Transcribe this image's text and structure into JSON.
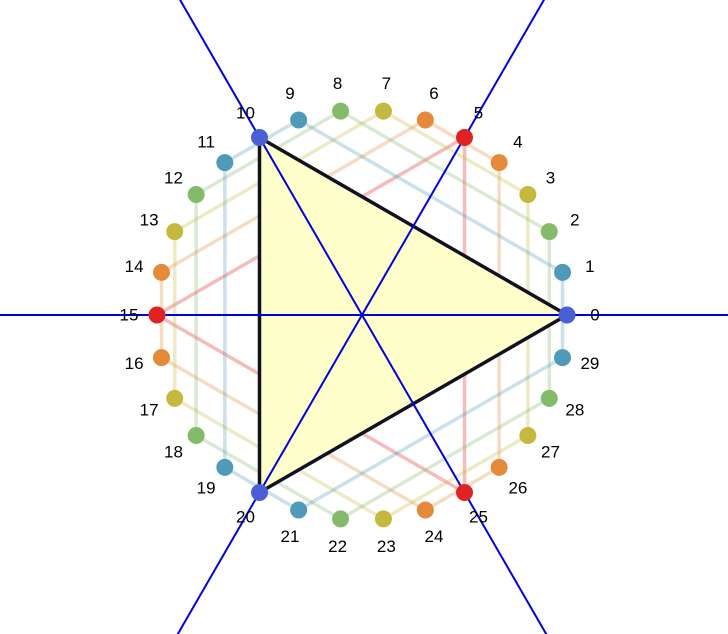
{
  "diagram": {
    "points": [
      {
        "label": "0",
        "color": "#4a5fd4"
      },
      {
        "label": "1",
        "color": "#4e9ab8"
      },
      {
        "label": "2",
        "color": "#84bb6b"
      },
      {
        "label": "3",
        "color": "#c4b93e"
      },
      {
        "label": "4",
        "color": "#e58a3a"
      },
      {
        "label": "5",
        "color": "#e02222"
      },
      {
        "label": "6",
        "color": "#e58a3a"
      },
      {
        "label": "7",
        "color": "#c4b93e"
      },
      {
        "label": "8",
        "color": "#84bb6b"
      },
      {
        "label": "9",
        "color": "#4e9ab8"
      },
      {
        "label": "10",
        "color": "#4a5fd4"
      },
      {
        "label": "11",
        "color": "#4e9ab8"
      },
      {
        "label": "12",
        "color": "#84bb6b"
      },
      {
        "label": "13",
        "color": "#c4b93e"
      },
      {
        "label": "14",
        "color": "#e58a3a"
      },
      {
        "label": "15",
        "color": "#e02222"
      },
      {
        "label": "16",
        "color": "#e58a3a"
      },
      {
        "label": "17",
        "color": "#c4b93e"
      },
      {
        "label": "18",
        "color": "#84bb6b"
      },
      {
        "label": "19",
        "color": "#4e9ab8"
      },
      {
        "label": "20",
        "color": "#4a5fd4"
      },
      {
        "label": "21",
        "color": "#4e9ab8"
      },
      {
        "label": "22",
        "color": "#84bb6b"
      },
      {
        "label": "23",
        "color": "#c4b93e"
      },
      {
        "label": "24",
        "color": "#e58a3a"
      },
      {
        "label": "25",
        "color": "#e02222"
      },
      {
        "label": "26",
        "color": "#e58a3a"
      },
      {
        "label": "27",
        "color": "#c4b93e"
      },
      {
        "label": "28",
        "color": "#84bb6b"
      },
      {
        "label": "29",
        "color": "#4e9ab8"
      }
    ],
    "triangle": {
      "vertices": [
        0,
        10,
        20
      ],
      "fill": "#ffffcc",
      "stroke": "#111122"
    },
    "chords": [
      {
        "from": 5,
        "to": 25,
        "color": "#e02222"
      },
      {
        "from": 5,
        "to": 15,
        "color": "#e02222"
      },
      {
        "from": 15,
        "to": 25,
        "color": "#e02222"
      },
      {
        "from": 4,
        "to": 26,
        "color": "#e58a3a"
      },
      {
        "from": 6,
        "to": 14,
        "color": "#e58a3a"
      },
      {
        "from": 16,
        "to": 24,
        "color": "#e58a3a"
      },
      {
        "from": 3,
        "to": 27,
        "color": "#c4b93e"
      },
      {
        "from": 7,
        "to": 13,
        "color": "#c4b93e"
      },
      {
        "from": 17,
        "to": 23,
        "color": "#c4b93e"
      },
      {
        "from": 2,
        "to": 28,
        "color": "#84bb6b"
      },
      {
        "from": 8,
        "to": 12,
        "color": "#84bb6b"
      },
      {
        "from": 18,
        "to": 22,
        "color": "#84bb6b"
      },
      {
        "from": 1,
        "to": 29,
        "color": "#4e9ab8"
      },
      {
        "from": 9,
        "to": 11,
        "color": "#4e9ab8"
      },
      {
        "from": 19,
        "to": 21,
        "color": "#4e9ab8"
      },
      {
        "from": 1,
        "to": 9,
        "color": "#4e9ab8"
      },
      {
        "from": 11,
        "to": 19,
        "color": "#4e9ab8"
      },
      {
        "from": 21,
        "to": 29,
        "color": "#4e9ab8"
      },
      {
        "from": 2,
        "to": 8,
        "color": "#84bb6b"
      },
      {
        "from": 12,
        "to": 18,
        "color": "#84bb6b"
      },
      {
        "from": 22,
        "to": 28,
        "color": "#84bb6b"
      },
      {
        "from": 3,
        "to": 7,
        "color": "#c4b93e"
      },
      {
        "from": 13,
        "to": 17,
        "color": "#c4b93e"
      },
      {
        "from": 23,
        "to": 27,
        "color": "#c4b93e"
      },
      {
        "from": 4,
        "to": 6,
        "color": "#e58a3a"
      },
      {
        "from": 14,
        "to": 16,
        "color": "#e58a3a"
      },
      {
        "from": 24,
        "to": 26,
        "color": "#e58a3a"
      }
    ],
    "symmetry_axes": {
      "through_points": [
        0,
        10,
        20
      ],
      "color": "#0000dd"
    }
  }
}
